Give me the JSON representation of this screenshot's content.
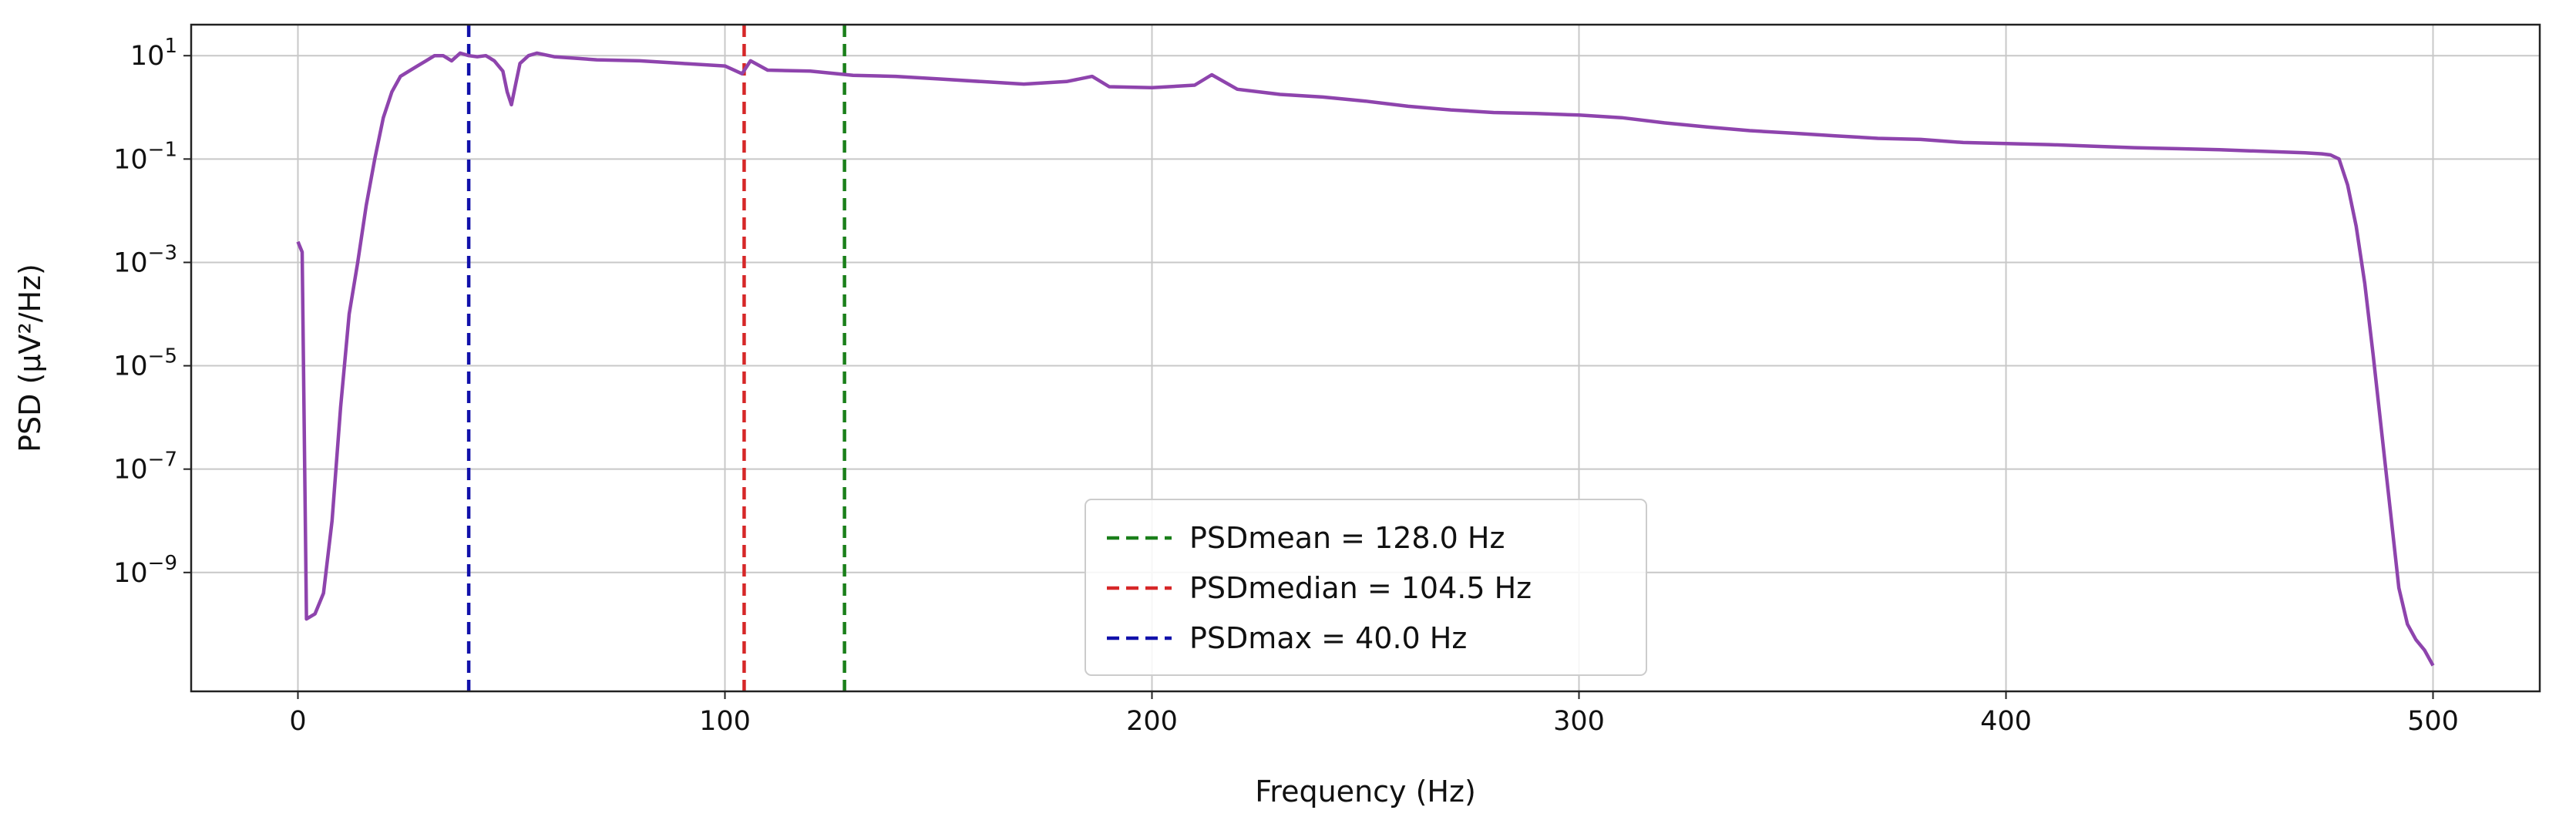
{
  "chart_data": {
    "type": "line",
    "title": "",
    "xlabel": "Frequency (Hz)",
    "ylabel": "PSD (µV²/Hz)",
    "xlim": [
      -25,
      525
    ],
    "ylim_log10": [
      -11.3,
      1.6
    ],
    "yscale": "log",
    "grid": true,
    "x_ticks": [
      {
        "value": 0,
        "label": "0"
      },
      {
        "value": 100,
        "label": "100"
      },
      {
        "value": 200,
        "label": "200"
      },
      {
        "value": 300,
        "label": "300"
      },
      {
        "value": 400,
        "label": "400"
      },
      {
        "value": 500,
        "label": "500"
      }
    ],
    "y_ticks": [
      {
        "exp": 1,
        "base": "10",
        "sup": "1"
      },
      {
        "exp": -1,
        "base": "10",
        "sup": "−1"
      },
      {
        "exp": -3,
        "base": "10",
        "sup": "−3"
      },
      {
        "exp": -5,
        "base": "10",
        "sup": "−5"
      },
      {
        "exp": -7,
        "base": "10",
        "sup": "−7"
      },
      {
        "exp": -9,
        "base": "10",
        "sup": "−9"
      }
    ],
    "series": [
      {
        "color": "#8e44ad",
        "x": [
          0,
          1,
          2,
          4,
          6,
          8,
          10,
          12,
          14,
          16,
          18,
          20,
          22,
          24,
          26,
          28,
          30,
          32,
          34,
          36,
          38,
          40,
          42,
          44,
          46,
          48,
          49,
          50,
          51,
          52,
          54,
          56,
          60,
          70,
          80,
          90,
          100,
          104,
          106,
          110,
          120,
          130,
          140,
          150,
          160,
          170,
          180,
          186,
          190,
          200,
          210,
          214,
          220,
          230,
          240,
          250,
          260,
          270,
          280,
          290,
          300,
          310,
          320,
          330,
          340,
          350,
          360,
          370,
          380,
          390,
          400,
          410,
          420,
          430,
          440,
          450,
          460,
          470,
          474,
          476,
          478,
          480,
          482,
          484,
          486,
          488,
          490,
          492,
          494,
          496,
          498,
          500
        ],
        "y_log10": [
          -2.6,
          -2.8,
          -9.9,
          -9.8,
          -9.4,
          -8.0,
          -5.8,
          -4.0,
          -3.0,
          -1.9,
          -1.0,
          -0.2,
          0.3,
          0.6,
          0.7,
          0.8,
          0.9,
          1.0,
          1.0,
          0.9,
          1.05,
          1.0,
          0.98,
          1.0,
          0.9,
          0.7,
          0.3,
          0.05,
          0.45,
          0.85,
          1.0,
          1.05,
          0.98,
          0.92,
          0.9,
          0.85,
          0.8,
          0.65,
          0.9,
          0.72,
          0.7,
          0.62,
          0.6,
          0.55,
          0.5,
          0.45,
          0.5,
          0.6,
          0.4,
          0.38,
          0.43,
          0.63,
          0.35,
          0.25,
          0.2,
          0.12,
          0.02,
          -0.05,
          -0.1,
          -0.12,
          -0.15,
          -0.2,
          -0.3,
          -0.38,
          -0.45,
          -0.5,
          -0.55,
          -0.6,
          -0.62,
          -0.68,
          -0.7,
          -0.72,
          -0.75,
          -0.78,
          -0.8,
          -0.82,
          -0.85,
          -0.88,
          -0.9,
          -0.92,
          -1.0,
          -1.5,
          -2.3,
          -3.4,
          -4.8,
          -6.3,
          -7.8,
          -9.3,
          -10.0,
          -10.3,
          -10.5,
          -10.8
        ]
      }
    ],
    "vlines": [
      {
        "x": 128.0,
        "color": "#1a7f1a",
        "label": "PSDmean = 128.0 Hz"
      },
      {
        "x": 104.5,
        "color": "#d62728",
        "label": "PSDmedian = 104.5 Hz"
      },
      {
        "x": 40.0,
        "color": "#1111aa",
        "label": "PSDmax = 40.0 Hz"
      }
    ],
    "legend_position": "lower-center"
  }
}
